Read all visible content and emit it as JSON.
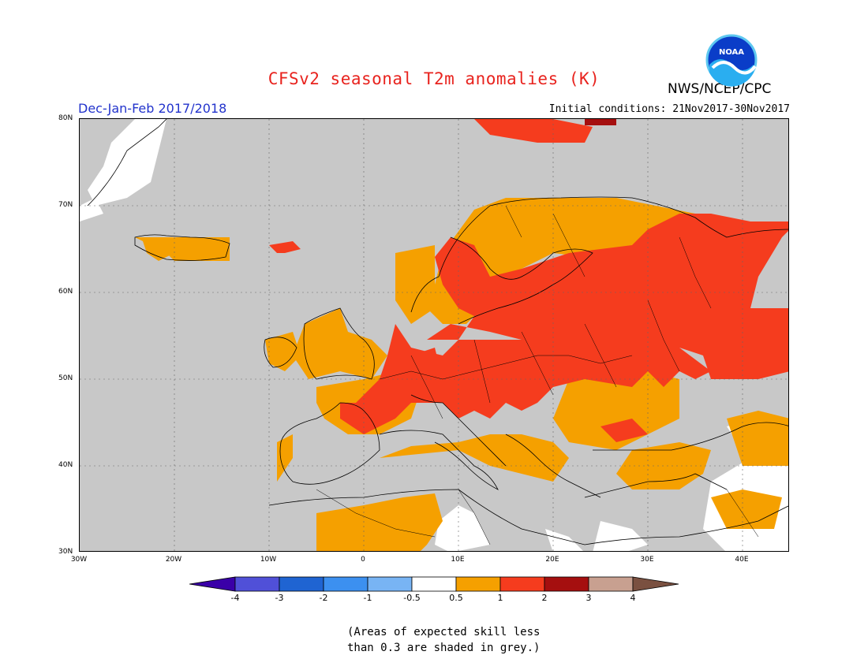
{
  "header": {
    "title": "CFSv2 seasonal T2m anomalies (K)",
    "agency": "NWS/NCEP/CPC",
    "period": "Dec-Jan-Feb 2017/2018",
    "initial_conditions": "Initial conditions: 21Nov2017-30Nov2017",
    "logo_text": "NOAA"
  },
  "map": {
    "region": "Europe",
    "lat_labels": [
      "80N",
      "70N",
      "60N",
      "50N",
      "40N",
      "30N"
    ],
    "lon_labels": [
      "30W",
      "20W",
      "10W",
      "0",
      "10E",
      "20E",
      "30E",
      "40E"
    ],
    "extent": {
      "lon_min": -30,
      "lon_max": 45,
      "lat_min": 30,
      "lat_max": 80
    },
    "grid": "dotted",
    "skill_mask_color": "#c8c8c8"
  },
  "colorbar": {
    "labels": [
      "-4",
      "-3",
      "-2",
      "-1",
      "-0.5",
      "0.5",
      "1",
      "2",
      "3",
      "4"
    ],
    "colors": [
      "#3a00a8",
      "#5050d8",
      "#1f64d2",
      "#3c90f0",
      "#78b4f4",
      "#ffffff",
      "#f5a000",
      "#f53c1e",
      "#a50f0f",
      "#c8a090",
      "#7a5040"
    ]
  },
  "footnote": {
    "line1": "(Areas of expected skill less",
    "line2": "than 0.3 are shaded in grey.)"
  }
}
